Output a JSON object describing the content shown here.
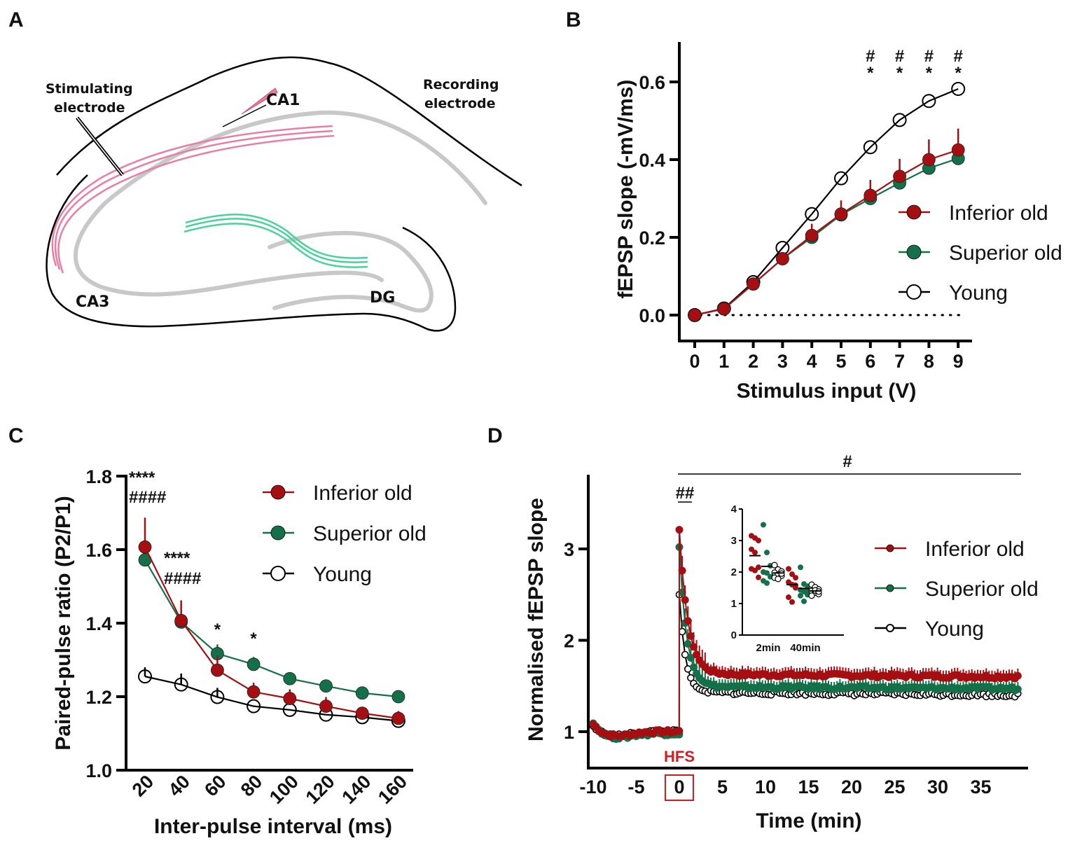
{
  "colors": {
    "inferior_old": "#a50f12",
    "superior_old": "#137049",
    "young": "#000000",
    "ca1_fibers": "#e97fa0",
    "dg_fibers": "#49d39a",
    "layer": "#c8c8c8",
    "hfs": "#d71920"
  },
  "panel_a": {
    "letter": "A",
    "labels": {
      "stimulating": [
        "Stimulating",
        "electrode"
      ],
      "recording": [
        "Recording",
        "electrode"
      ],
      "ca1": "CA1",
      "ca3": "CA3",
      "dg": "DG"
    }
  },
  "chart_data": [
    {
      "panel": "B",
      "type": "line",
      "title": "",
      "xlabel": "Stimulus input (V)",
      "ylabel": "fEPSP slope (-mV/ms)",
      "x": [
        0,
        1,
        2,
        3,
        4,
        5,
        6,
        7,
        8,
        9
      ],
      "xticks": [
        "0",
        "1",
        "2",
        "3",
        "4",
        "5",
        "6",
        "7",
        "8",
        "9"
      ],
      "yticks": [
        "0.0",
        "0.2",
        "0.4",
        "0.6"
      ],
      "ytick_values": [
        0.0,
        0.2,
        0.4,
        0.6
      ],
      "ylim": [
        -0.06,
        0.7
      ],
      "reference_line": {
        "y": 0.0,
        "style": "dotted"
      },
      "legend_position": "right",
      "series": [
        {
          "name": "Inferior old",
          "key": "inferior_old",
          "marker": "filled",
          "values": [
            0.0,
            0.016,
            0.08,
            0.145,
            0.205,
            0.26,
            0.308,
            0.357,
            0.4,
            0.425
          ],
          "err_up": [
            0,
            0,
            0,
            0,
            0.03,
            0.035,
            0.04,
            0.045,
            0.052,
            0.055
          ]
        },
        {
          "name": "Superior old",
          "key": "superior_old",
          "marker": "filled",
          "values": [
            0.0,
            0.016,
            0.08,
            0.145,
            0.2,
            0.258,
            0.3,
            0.34,
            0.378,
            0.403
          ],
          "err_up": [
            0,
            0,
            0,
            0,
            0,
            0,
            0,
            0,
            0,
            0
          ]
        },
        {
          "name": "Young",
          "key": "young",
          "marker": "open",
          "values": [
            0.0,
            0.017,
            0.085,
            0.173,
            0.26,
            0.352,
            0.432,
            0.502,
            0.551,
            0.582
          ],
          "err_up": [
            0,
            0,
            0,
            0,
            0,
            0,
            0,
            0,
            0,
            0
          ]
        }
      ],
      "annotations": [
        {
          "x": 6,
          "lines": [
            "#",
            "*"
          ]
        },
        {
          "x": 7,
          "lines": [
            "#",
            "*"
          ]
        },
        {
          "x": 8,
          "lines": [
            "#",
            "*"
          ]
        },
        {
          "x": 9,
          "lines": [
            "#",
            "*"
          ]
        }
      ]
    },
    {
      "panel": "C",
      "type": "line",
      "title": "",
      "xlabel": "Inter-pulse interval (ms)",
      "ylabel": "Paired-pulse ratio (P2/P1)",
      "x": [
        20,
        40,
        60,
        80,
        100,
        120,
        140,
        160
      ],
      "xticks": [
        "20",
        "40",
        "60",
        "80",
        "100",
        "120",
        "140",
        "160"
      ],
      "yticks": [
        "1.0",
        "1.2",
        "1.4",
        "1.6",
        "1.8"
      ],
      "ytick_values": [
        1.0,
        1.2,
        1.4,
        1.6,
        1.8
      ],
      "ylim": [
        1.0,
        1.8
      ],
      "legend_position": "top-right",
      "series": [
        {
          "name": "Inferior old",
          "key": "inferior_old",
          "marker": "filled",
          "values": [
            1.607,
            1.407,
            1.272,
            1.213,
            1.195,
            1.174,
            1.155,
            1.141
          ],
          "err_up": [
            0.08,
            0.055,
            0.04,
            0.025,
            0.025,
            0.025,
            0.015,
            0.02
          ]
        },
        {
          "name": "Superior old",
          "key": "superior_old",
          "marker": "filled",
          "values": [
            1.572,
            1.403,
            1.317,
            1.288,
            1.249,
            1.229,
            1.21,
            1.2
          ],
          "err_up": [
            0,
            0,
            0.025,
            0.02,
            0,
            0,
            0,
            0
          ]
        },
        {
          "name": "Young",
          "key": "young",
          "marker": "open",
          "values": [
            1.255,
            1.233,
            1.199,
            1.174,
            1.164,
            1.151,
            1.144,
            1.134
          ],
          "err_up": [
            0.025,
            0.03,
            0.025,
            0,
            0,
            0,
            0,
            0
          ]
        }
      ],
      "annotations": [
        {
          "x": 20,
          "lines": [
            "****",
            "####"
          ],
          "position": "top"
        },
        {
          "x": 40,
          "lines": [
            "****",
            "####"
          ]
        },
        {
          "x": 60,
          "lines": [
            "*"
          ]
        },
        {
          "x": 80,
          "lines": [
            "*"
          ]
        }
      ]
    },
    {
      "panel": "D",
      "type": "line",
      "title": "",
      "xlabel": "Time (min)",
      "ylabel": "Normalised fEPSP slope",
      "xticks": [
        "-10",
        "-5",
        "0",
        "5",
        "10",
        "15",
        "20",
        "25",
        "30",
        "35"
      ],
      "xtick_values": [
        -10,
        -5,
        0,
        5,
        10,
        15,
        20,
        25,
        30,
        35
      ],
      "yticks": [
        "1",
        "2",
        "3"
      ],
      "ytick_values": [
        1,
        2,
        3
      ],
      "xlim": [
        -10.3,
        40.3
      ],
      "ylim": [
        0.6,
        3.8
      ],
      "highlighted_tick": "0",
      "event_label": "HFS",
      "legend_position": "right",
      "sampling_interval_min": 0.333,
      "series": [
        {
          "name": "Inferior old",
          "key": "inferior_old",
          "marker": "filled-small",
          "baseline": 1.0,
          "baseline_start": 1.1,
          "peak": 3.21,
          "plateau": 1.63,
          "plateau_end": 1.6,
          "decay_tau": 1.0,
          "err_up": 0.08
        },
        {
          "name": "Superior old",
          "key": "superior_old",
          "marker": "filled-small",
          "baseline": 0.98,
          "baseline_start": 1.13,
          "peak": 3.02,
          "plateau": 1.49,
          "plateau_end": 1.47,
          "decay_tau": 0.85,
          "err_up": 0.08
        },
        {
          "name": "Young",
          "key": "young",
          "marker": "open-small",
          "baseline": 1.0,
          "baseline_start": 1.08,
          "peak": 2.5,
          "plateau": 1.43,
          "plateau_end": 1.4,
          "decay_tau": 0.7,
          "err_up": 0.0
        }
      ],
      "annotations": [
        {
          "label": "#",
          "span": [
            0,
            40
          ],
          "type": "bracket"
        },
        {
          "label": "##",
          "span": [
            0,
            1
          ],
          "type": "bracket"
        }
      ],
      "inset": {
        "type": "scatter",
        "categories": [
          "2min",
          "40min"
        ],
        "yticks": [
          "0",
          "1",
          "2",
          "3",
          "4"
        ],
        "ytick_values": [
          0,
          1,
          2,
          3,
          4
        ],
        "ylim": [
          0,
          4
        ],
        "groups": [
          {
            "category": "2min",
            "key": "inferior_old",
            "mean": 2.52,
            "points": [
              3.15,
              3.08,
              3.0,
              2.72,
              2.62,
              2.15,
              2.1,
              2.05,
              1.83
            ]
          },
          {
            "category": "2min",
            "key": "superior_old",
            "mean": 2.18,
            "points": [
              3.5,
              2.62,
              2.2,
              2.0,
              1.97,
              1.85,
              1.72,
              1.65
            ]
          },
          {
            "category": "2min",
            "key": "young",
            "mean": 1.97,
            "points": [
              2.22,
              2.08,
              2.02,
              1.98,
              1.92,
              1.88,
              1.82,
              1.78,
              1.95
            ]
          },
          {
            "category": "40min",
            "key": "inferior_old",
            "mean": 1.6,
            "points": [
              2.1,
              1.93,
              1.82,
              1.68,
              1.6,
              1.5,
              1.2,
              1.05,
              1.58
            ]
          },
          {
            "category": "40min",
            "key": "superior_old",
            "mean": 1.48,
            "points": [
              2.15,
              1.62,
              1.55,
              1.43,
              1.38,
              1.28,
              1.25,
              1.07,
              1.4
            ]
          },
          {
            "category": "40min",
            "key": "young",
            "mean": 1.4,
            "points": [
              1.6,
              1.52,
              1.45,
              1.4,
              1.35,
              1.3,
              1.25,
              1.42,
              1.38
            ]
          }
        ]
      }
    }
  ]
}
